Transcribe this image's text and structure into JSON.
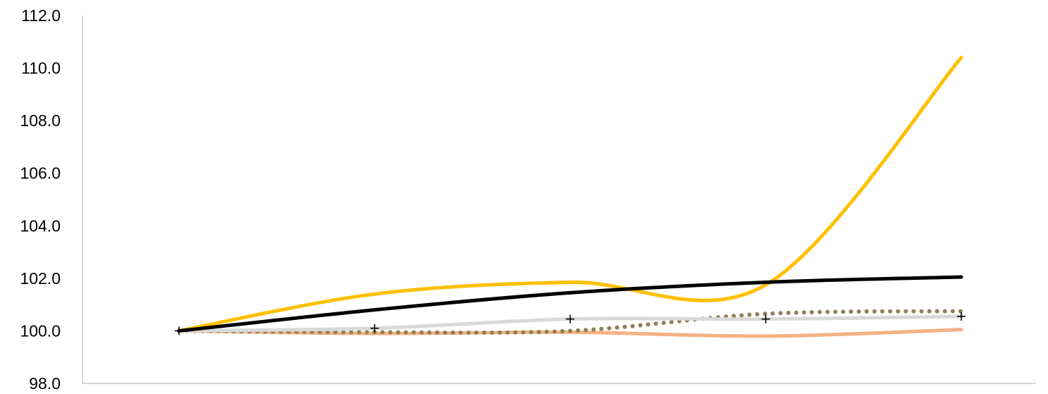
{
  "chart_data": {
    "type": "line",
    "title": "",
    "xlabel": "",
    "ylabel": "",
    "ylim": [
      98,
      112
    ],
    "y_ticks": [
      "98.0",
      "100.0",
      "102.0",
      "104.0",
      "106.0",
      "108.0",
      "110.0",
      "112.0"
    ],
    "y_tick_values": [
      98,
      100,
      102,
      104,
      106,
      108,
      110,
      112
    ],
    "x": [
      1,
      2,
      3,
      4,
      5
    ],
    "grid": false,
    "legend": "none",
    "series": [
      {
        "values": [
          100.0,
          101.4,
          101.85,
          101.75,
          110.4
        ],
        "color": "#FFC000",
        "style": "solid-smooth",
        "width": 5
      },
      {
        "values": [
          100.0,
          100.8,
          101.45,
          101.85,
          102.05
        ],
        "color": "#000000",
        "style": "solid-smooth",
        "width": 5
      },
      {
        "values": [
          100.0,
          100.1,
          100.45,
          100.45,
          100.55
        ],
        "color": "#D9D9D9",
        "style": "solid-plus-markers",
        "width": 5,
        "marker_color": "#000000"
      },
      {
        "values": [
          100.0,
          99.95,
          100.0,
          100.65,
          100.75
        ],
        "color": "#8C8356",
        "style": "dotted",
        "width": 5
      },
      {
        "values": [
          100.0,
          99.9,
          99.95,
          99.8,
          100.05
        ],
        "color": "#F4B183",
        "style": "solid-smooth",
        "width": 5
      }
    ]
  }
}
